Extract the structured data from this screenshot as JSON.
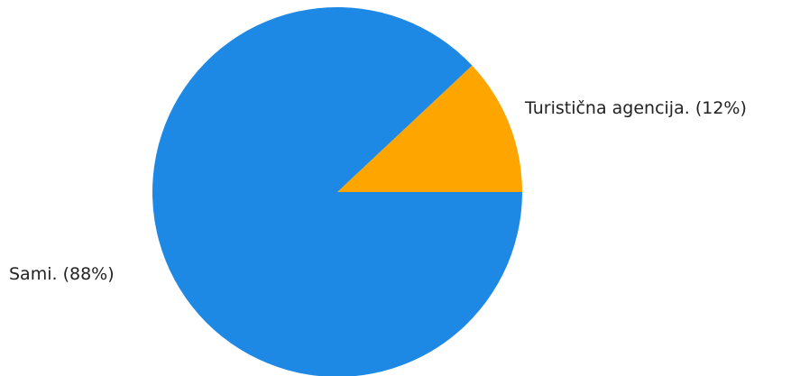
{
  "chart_data": {
    "type": "pie",
    "title": "",
    "slices": [
      {
        "label": "Turistična agencija.",
        "value": 12,
        "display": "Turistična agencija. (12%)",
        "color": "#FFA500"
      },
      {
        "label": "Sami.",
        "value": 88,
        "display": "Sami. (88%)",
        "color": "#1E88E5"
      }
    ],
    "start_angle_deg": 0,
    "direction": "counterclockwise",
    "legend": "none",
    "labels": "outside"
  }
}
